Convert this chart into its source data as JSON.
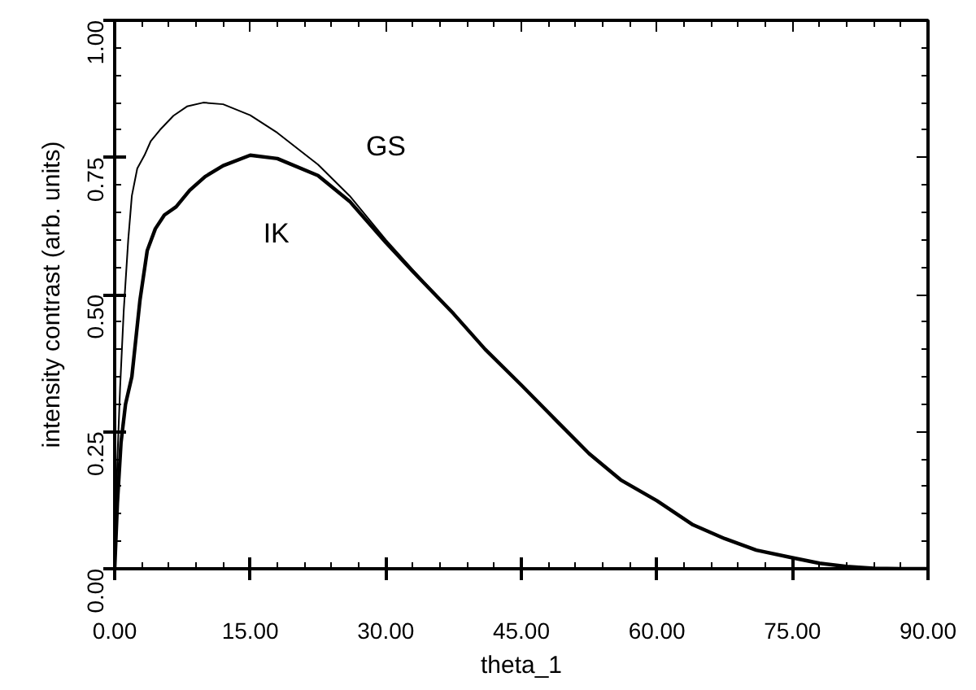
{
  "chart_data": {
    "type": "line",
    "xlabel": "theta_1",
    "ylabel": "intensity contrast (arb. units)",
    "xlim": [
      0,
      90
    ],
    "ylim": [
      0,
      1
    ],
    "xticks": [
      {
        "value": 0,
        "label": "0.00"
      },
      {
        "value": 15,
        "label": "15.00"
      },
      {
        "value": 30,
        "label": "30.00"
      },
      {
        "value": 45,
        "label": "45.00"
      },
      {
        "value": 60,
        "label": "60.00"
      },
      {
        "value": 75,
        "label": "75.00"
      },
      {
        "value": 90,
        "label": "90.00"
      }
    ],
    "yticks": [
      {
        "value": 0,
        "label": "0.00"
      },
      {
        "value": 0.25,
        "label": "0.25"
      },
      {
        "value": 0.5,
        "label": "0.50"
      },
      {
        "value": 0.75,
        "label": "0.75"
      },
      {
        "value": 1,
        "label": "1.00"
      }
    ],
    "grid": false,
    "legend": false,
    "marker": "none",
    "line_style": "solid",
    "series": [
      {
        "name": "GS",
        "color": "#000000",
        "x": [
          0,
          0.3,
          0.6,
          1,
          1.5,
          1.9,
          2.5,
          3.3,
          4,
          5,
          6.5,
          8,
          9.8,
          12,
          15,
          18,
          22.5,
          26,
          30,
          33,
          37.5,
          41,
          45,
          49,
          52.5,
          56,
          60,
          64,
          67.5,
          71,
          75,
          78,
          81,
          84,
          87,
          90
        ],
        "values": [
          0,
          0.2,
          0.33,
          0.47,
          0.6,
          0.68,
          0.73,
          0.754,
          0.78,
          0.8,
          0.826,
          0.843,
          0.85,
          0.847,
          0.827,
          0.795,
          0.737,
          0.68,
          0.6,
          0.545,
          0.465,
          0.4,
          0.335,
          0.268,
          0.21,
          0.162,
          0.124,
          0.08,
          0.055,
          0.034,
          0.02,
          0.01,
          0.004,
          0.001,
          0,
          0
        ]
      },
      {
        "name": "IK",
        "color": "#000000",
        "x": [
          0,
          0.3,
          0.7,
          1.2,
          1.9,
          2.8,
          3.6,
          4.5,
          5.5,
          6.8,
          8.3,
          10,
          12,
          15,
          18,
          22.5,
          26,
          30,
          33,
          37.5,
          41,
          45,
          49,
          52.5,
          56,
          60,
          64,
          67.5,
          71,
          75,
          78,
          81,
          84,
          87,
          90
        ],
        "values": [
          0,
          0.12,
          0.23,
          0.3,
          0.35,
          0.49,
          0.58,
          0.62,
          0.645,
          0.66,
          0.69,
          0.715,
          0.735,
          0.754,
          0.748,
          0.717,
          0.67,
          0.595,
          0.542,
          0.465,
          0.4,
          0.335,
          0.268,
          0.21,
          0.162,
          0.124,
          0.08,
          0.055,
          0.034,
          0.02,
          0.01,
          0.004,
          0.001,
          0,
          0
        ]
      }
    ]
  }
}
